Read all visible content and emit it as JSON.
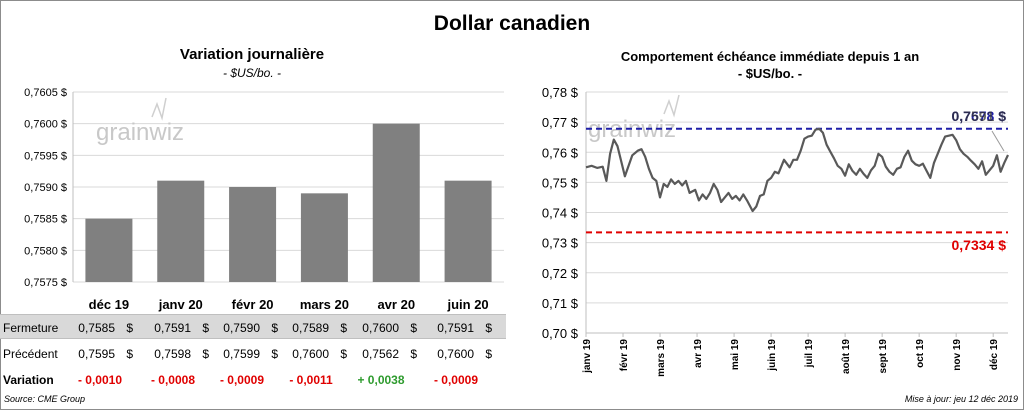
{
  "title": "Dollar canadien",
  "left_panel": {
    "title": "Variation  journalière",
    "subtitle": "- $US/bo. -",
    "watermark": "grainwiz"
  },
  "right_panel": {
    "title": "Comportement échéance immédiate depuis 1 an",
    "subtitle": "- $US/bo. -",
    "watermark": "grainwiz"
  },
  "table": {
    "rows": [
      {
        "label": "Fermeture",
        "values": [
          "0,7585",
          "0,7591",
          "0,7590",
          "0,7589",
          "0,7600",
          "0,7591"
        ],
        "currency": "$"
      },
      {
        "label": "Précédent",
        "values": [
          "0,7595",
          "0,7598",
          "0,7599",
          "0,7600",
          "0,7562",
          "0,7600"
        ],
        "currency": "$"
      },
      {
        "label": "Variation",
        "values": [
          "- 0,0010",
          "- 0,0008",
          "- 0,0009",
          "- 0,0011",
          "+ 0,0038",
          "- 0,0009"
        ]
      }
    ]
  },
  "footer": {
    "source": "Source: CME Group",
    "updated": "Mise à jour: jeu 12 déc 2019"
  },
  "colors": {
    "bar": "#808080",
    "line": "#595959",
    "high_line": "#1f1fa8",
    "low_line": "#e00000",
    "negative": "#e00000",
    "positive": "#2e9b2e"
  },
  "chart_data": [
    {
      "type": "bar",
      "categories": [
        "déc 19",
        "janv 20",
        "févr 20",
        "mars 20",
        "avr 20",
        "juin 20"
      ],
      "values": [
        0.7585,
        0.7591,
        0.759,
        0.7589,
        0.76,
        0.7591
      ],
      "ylim": [
        0.7575,
        0.7605
      ],
      "yticks": [
        0.7575,
        0.758,
        0.7585,
        0.759,
        0.7595,
        0.76,
        0.7605
      ],
      "ytick_labels": [
        "0,7575 $",
        "0,7580 $",
        "0,7585 $",
        "0,7590 $",
        "0,7595 $",
        "0,7600 $",
        "0,7605 $"
      ],
      "grid": true
    },
    {
      "type": "line",
      "ylim": [
        0.7,
        0.78
      ],
      "yticks": [
        0.7,
        0.71,
        0.72,
        0.73,
        0.74,
        0.75,
        0.76,
        0.77,
        0.78
      ],
      "ytick_labels": [
        "0,70 $",
        "0,71 $",
        "0,72 $",
        "0,73 $",
        "0,74 $",
        "0,75 $",
        "0,76 $",
        "0,77 $",
        "0,78 $"
      ],
      "x_labels": [
        "janv 19",
        "févr 19",
        "mars 19",
        "avr 19",
        "mai 19",
        "juin 19",
        "juil 19",
        "août 19",
        "sept 19",
        "oct 19",
        "nov 19",
        "déc 19"
      ],
      "x_range": [
        0,
        11.4
      ],
      "x": [
        0,
        0.15,
        0.3,
        0.45,
        0.55,
        0.65,
        0.75,
        0.85,
        0.95,
        1.05,
        1.15,
        1.25,
        1.4,
        1.5,
        1.6,
        1.7,
        1.8,
        1.9,
        2.0,
        2.1,
        2.2,
        2.3,
        2.4,
        2.5,
        2.6,
        2.7,
        2.8,
        2.95,
        3.05,
        3.15,
        3.25,
        3.35,
        3.45,
        3.55,
        3.65,
        3.75,
        3.85,
        3.95,
        4.05,
        4.15,
        4.25,
        4.35,
        4.5,
        4.6,
        4.7,
        4.8,
        4.9,
        5.0,
        5.1,
        5.2,
        5.35,
        5.5,
        5.6,
        5.7,
        5.8,
        5.9,
        6.0,
        6.1,
        6.2,
        6.3,
        6.4,
        6.5,
        6.6,
        6.7,
        6.8,
        6.9,
        7.0,
        7.1,
        7.2,
        7.3,
        7.4,
        7.5,
        7.6,
        7.7,
        7.8,
        7.9,
        8.0,
        8.1,
        8.2,
        8.3,
        8.4,
        8.5,
        8.6,
        8.7,
        8.8,
        8.9,
        9.0,
        9.1,
        9.2,
        9.3,
        9.4,
        9.5,
        9.6,
        9.7,
        9.8,
        9.9,
        10.0,
        10.1,
        10.2,
        10.3,
        10.4,
        10.5,
        10.6,
        10.7,
        10.8,
        10.9,
        11.0,
        11.1,
        11.2,
        11.3,
        11.4
      ],
      "values": [
        0.755,
        0.7555,
        0.7548,
        0.7552,
        0.7505,
        0.7595,
        0.7642,
        0.762,
        0.757,
        0.752,
        0.7555,
        0.759,
        0.7605,
        0.761,
        0.7585,
        0.7545,
        0.7515,
        0.7505,
        0.745,
        0.7495,
        0.7485,
        0.751,
        0.7495,
        0.7505,
        0.749,
        0.7505,
        0.7465,
        0.7475,
        0.744,
        0.746,
        0.7445,
        0.7465,
        0.7495,
        0.7475,
        0.7435,
        0.745,
        0.7465,
        0.7445,
        0.7455,
        0.744,
        0.746,
        0.744,
        0.7405,
        0.742,
        0.7455,
        0.746,
        0.7505,
        0.7515,
        0.7535,
        0.753,
        0.7575,
        0.755,
        0.7575,
        0.7575,
        0.7605,
        0.7645,
        0.7652,
        0.7655,
        0.7675,
        0.7678,
        0.7665,
        0.7625,
        0.7602,
        0.758,
        0.7555,
        0.7545,
        0.7522,
        0.756,
        0.7538,
        0.7525,
        0.7545,
        0.7528,
        0.7515,
        0.754,
        0.7555,
        0.7595,
        0.7585,
        0.7552,
        0.7535,
        0.7525,
        0.7545,
        0.755,
        0.7585,
        0.7605,
        0.7572,
        0.756,
        0.7555,
        0.7562,
        0.7538,
        0.7515,
        0.7565,
        0.7595,
        0.7625,
        0.7652,
        0.7655,
        0.7658,
        0.764,
        0.761,
        0.7595,
        0.7585,
        0.7572,
        0.756,
        0.7545,
        0.757,
        0.7525,
        0.754,
        0.7555,
        0.759,
        0.7535,
        0.7565,
        0.7591
      ],
      "high_value": 0.7678,
      "high_label": "0,7678 $",
      "low_value": 0.7334,
      "low_label": "0,7334 $",
      "last_label": "0,7591 $",
      "grid": true
    }
  ]
}
